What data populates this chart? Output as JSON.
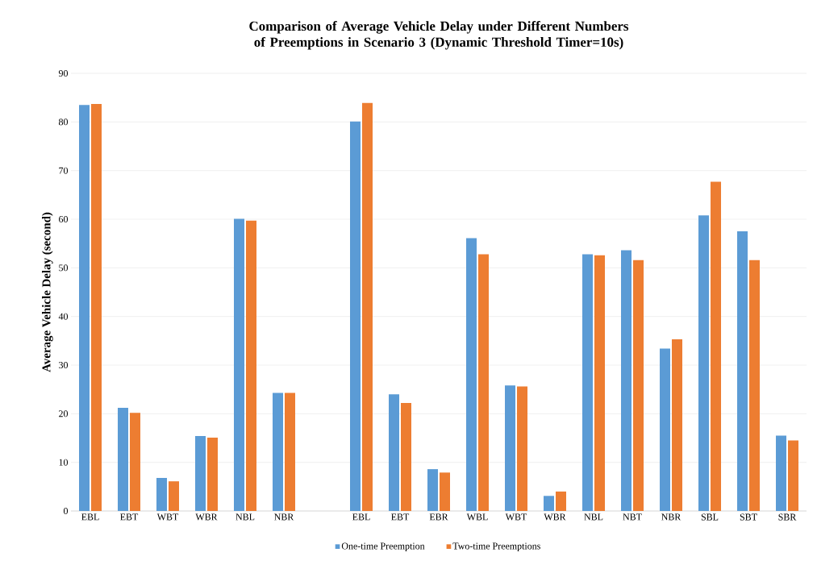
{
  "chart_data": {
    "type": "bar",
    "title": "Comparison of Average Vehicle Delay under Different Numbers of Preemptions in Scenario 3 (Dynamic Threshold Timer=10s)",
    "ylabel": "Average Vehicle Delay (second)",
    "categories": [
      "EBL",
      "EBT",
      "WBT",
      "WBR",
      "NBL",
      "NBR",
      null,
      "EBL",
      "EBT",
      "EBR",
      "WBL",
      "WBT",
      "WBR",
      "NBL",
      "NBT",
      "NBR",
      "SBL",
      "SBT",
      "SBR"
    ],
    "series": [
      {
        "name": "One-time Preemption",
        "color": "#5b9bd5",
        "values": [
          83.5,
          21.2,
          6.8,
          15.4,
          60.1,
          24.3,
          null,
          80.1,
          24.0,
          8.6,
          56.1,
          25.8,
          3.1,
          52.8,
          53.6,
          33.4,
          60.8,
          57.5,
          15.5
        ]
      },
      {
        "name": "Two-time Preemptions",
        "color": "#ed7d31",
        "values": [
          83.7,
          20.2,
          6.1,
          15.1,
          59.7,
          24.3,
          null,
          83.9,
          22.2,
          7.9,
          52.8,
          25.6,
          4.0,
          52.6,
          51.6,
          35.3,
          67.7,
          51.6,
          14.5
        ]
      }
    ],
    "ylim": [
      0,
      90
    ],
    "yticks": [
      0,
      10,
      20,
      30,
      40,
      50,
      60,
      70,
      80,
      90
    ],
    "grid": "y",
    "legend": "bottom"
  }
}
